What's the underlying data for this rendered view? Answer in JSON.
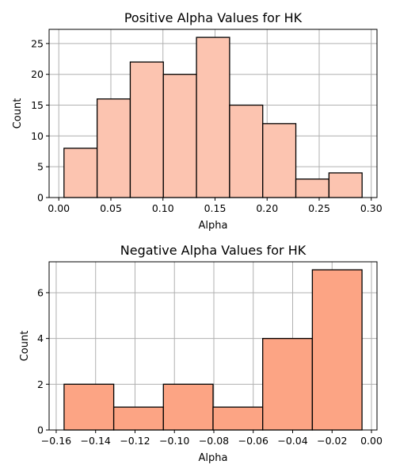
{
  "chart_data": [
    {
      "type": "bar",
      "title": "Positive Alpha Values for HK",
      "xlabel": "Alpha",
      "ylabel": "Count",
      "bar_color": "#fcc4b0",
      "bin_edges": [
        0.005,
        0.0368,
        0.0686,
        0.1004,
        0.1322,
        0.164,
        0.1958,
        0.2276,
        0.2594,
        0.2912
      ],
      "counts": [
        8,
        16,
        22,
        20,
        26,
        15,
        12,
        3,
        4
      ],
      "xlim": [
        -0.0093,
        0.3055
      ],
      "ylim": [
        0,
        27.3
      ],
      "xticks": [
        0.0,
        0.05,
        0.1,
        0.15,
        0.2,
        0.25,
        0.3
      ],
      "xtick_labels": [
        "0.00",
        "0.05",
        "0.10",
        "0.15",
        "0.20",
        "0.25",
        "0.30"
      ],
      "yticks": [
        0,
        5,
        10,
        15,
        20,
        25
      ],
      "ytick_labels": [
        "0",
        "5",
        "10",
        "15",
        "20",
        "25"
      ],
      "grid": true
    },
    {
      "type": "bar",
      "title": "Negative Alpha Values for HK",
      "xlabel": "Alpha",
      "ylabel": "Count",
      "bar_color": "#fca484",
      "bin_edges": [
        -0.156,
        -0.1308,
        -0.1056,
        -0.0804,
        -0.0552,
        -0.03,
        -0.0048
      ],
      "counts": [
        2,
        1,
        2,
        1,
        4,
        7
      ],
      "xlim": [
        -0.1636,
        0.0028
      ],
      "ylim": [
        0,
        7.35
      ],
      "xticks": [
        -0.16,
        -0.14,
        -0.12,
        -0.1,
        -0.08,
        -0.06,
        -0.04,
        -0.02,
        0.0
      ],
      "xtick_labels": [
        "−0.16",
        "−0.14",
        "−0.12",
        "−0.10",
        "−0.08",
        "−0.06",
        "−0.04",
        "−0.02",
        "0.00"
      ],
      "yticks": [
        0,
        2,
        4,
        6
      ],
      "ytick_labels": [
        "0",
        "2",
        "4",
        "6"
      ],
      "grid": true
    }
  ]
}
